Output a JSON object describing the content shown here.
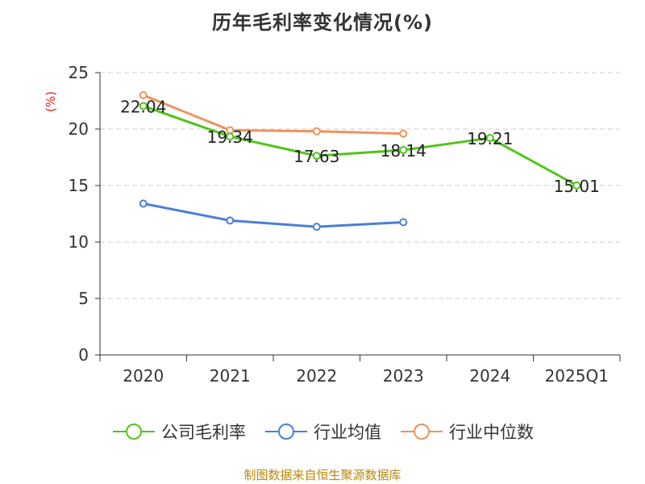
{
  "chart_data": {
    "type": "line",
    "title": "历年毛利率变化情况(%)",
    "ylabel": "(%)",
    "xlabel": "",
    "categories": [
      "2020",
      "2021",
      "2022",
      "2023",
      "2024",
      "2025Q1"
    ],
    "yticks": [
      "0",
      "5",
      "10",
      "15",
      "20",
      "25"
    ],
    "ylim": [
      0,
      25
    ],
    "grid": "horizontal dashed",
    "legend_position": "bottom",
    "series": [
      {
        "name": "公司毛利率",
        "color": "#52c41a",
        "values": [
          22.04,
          19.34,
          17.63,
          18.14,
          19.21,
          15.01
        ],
        "labels": [
          "22.04",
          "19.34",
          "17.63",
          "18.14",
          "19.21",
          "15.01"
        ]
      },
      {
        "name": "行业均值",
        "color": "#4a7fd6",
        "values": [
          13.4,
          11.9,
          11.35,
          11.75,
          null,
          null
        ],
        "labels": []
      },
      {
        "name": "行业中位数",
        "color": "#f0935a",
        "values": [
          23.0,
          19.9,
          19.8,
          19.6,
          null,
          null
        ],
        "labels": []
      }
    ]
  },
  "ylabel_color": "#e02020",
  "source_note": "制图数据来自恒生聚源数据库"
}
